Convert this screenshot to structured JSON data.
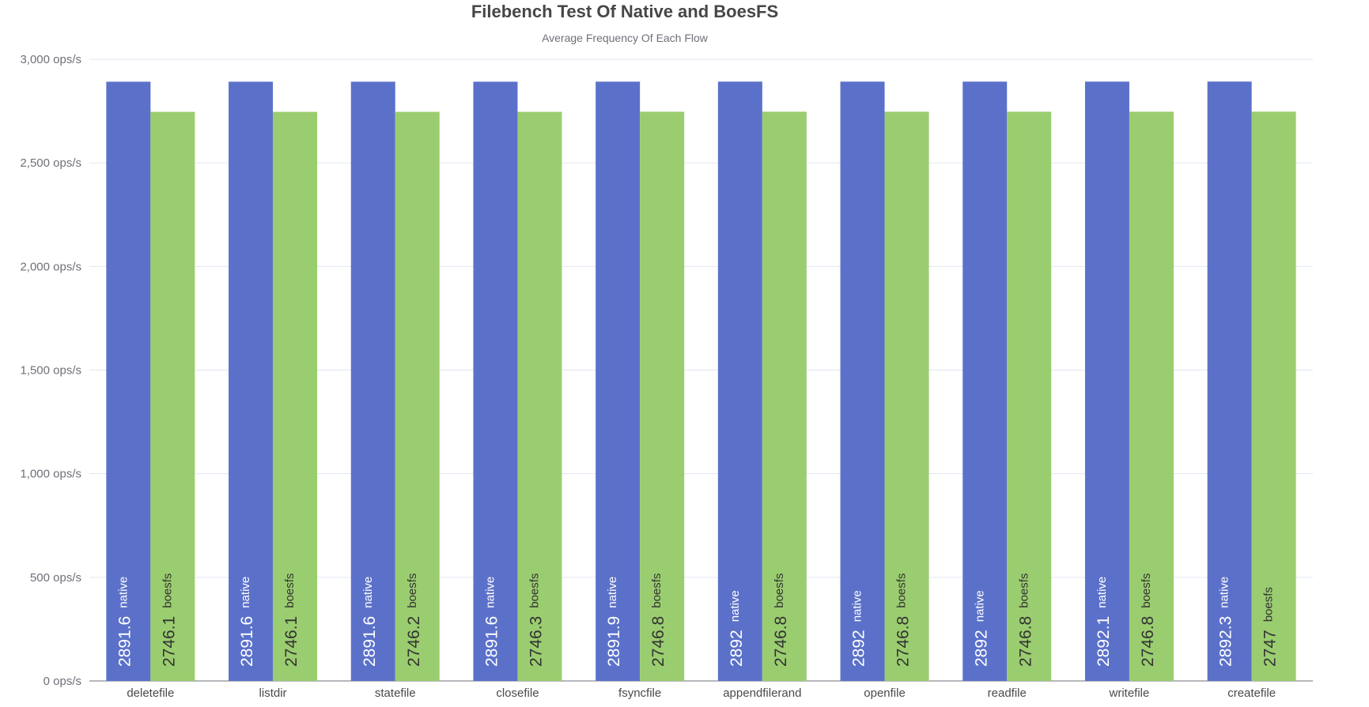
{
  "chart_data": {
    "type": "bar",
    "title": "Filebench Test Of Native and BoesFS",
    "subtitle": "Average Frequency Of Each Flow",
    "xlabel": "",
    "ylabel": "",
    "ylim": [
      0,
      3000
    ],
    "yticks": [
      0,
      500,
      1000,
      1500,
      2000,
      2500,
      3000
    ],
    "ytick_labels": [
      "0 ops/s",
      "500 ops/s",
      "1,000 ops/s",
      "1,500 ops/s",
      "2,000 ops/s",
      "2,500 ops/s",
      "3,000 ops/s"
    ],
    "grid": true,
    "categories": [
      "deletefile",
      "listdir",
      "statefile",
      "closefile",
      "fsyncfile",
      "appendfilerand",
      "openfile",
      "readfile",
      "writefile",
      "createfile"
    ],
    "series": [
      {
        "name": "native",
        "color": "#5b71c9",
        "values": [
          2891.6,
          2891.6,
          2891.6,
          2891.6,
          2891.9,
          2892,
          2892,
          2892,
          2892.1,
          2892.3
        ]
      },
      {
        "name": "boesfs",
        "color": "#9acd6f",
        "values": [
          2746.1,
          2746.1,
          2746.2,
          2746.3,
          2746.8,
          2746.8,
          2746.8,
          2746.8,
          2746.8,
          2747
        ]
      }
    ]
  }
}
